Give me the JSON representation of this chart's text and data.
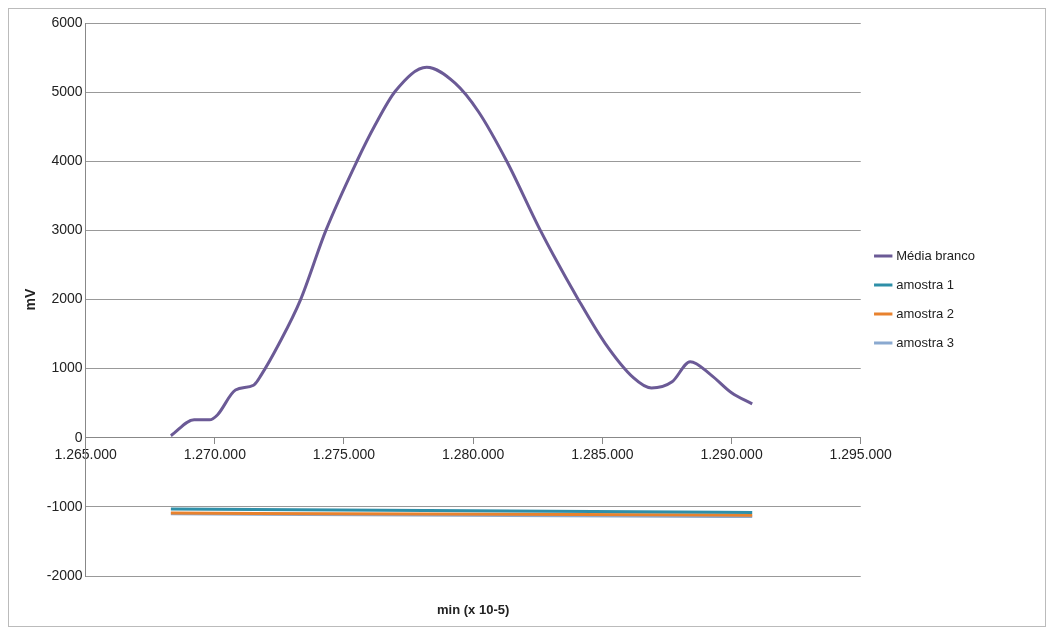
{
  "chart_data": {
    "type": "line",
    "xlabel": "min (x 10-5)",
    "ylabel": "mV",
    "xlim": [
      1265000,
      1295000
    ],
    "xticks": [
      {
        "value": 1265000,
        "label": "1.265.000"
      },
      {
        "value": 1270000,
        "label": "1.270.000"
      },
      {
        "value": 1275000,
        "label": "1.275.000"
      },
      {
        "value": 1280000,
        "label": "1.280.000"
      },
      {
        "value": 1285000,
        "label": "1.285.000"
      },
      {
        "value": 1290000,
        "label": "1.290.000"
      },
      {
        "value": 1295000,
        "label": "1.295.000"
      }
    ],
    "ylim": [
      -2000,
      6000
    ],
    "yticks": [
      -2000,
      -1000,
      0,
      1000,
      2000,
      3000,
      4000,
      5000,
      6000
    ],
    "grid": "y",
    "legend": "right",
    "marker": "none",
    "line_style": "solid",
    "series": [
      {
        "name": "Média branco",
        "color": "#6b5a96",
        "x": [
          1268300,
          1269200,
          1269800,
          1270100,
          1270800,
          1271500,
          1271800,
          1272500,
          1273300,
          1274300,
          1275500,
          1276200,
          1277000,
          1278200,
          1279300,
          1280200,
          1281300,
          1282600,
          1284100,
          1285100,
          1286200,
          1286900,
          1287700,
          1288400,
          1289200,
          1290000,
          1290800
        ],
        "values": [
          30,
          260,
          260,
          330,
          690,
          760,
          910,
          1370,
          1980,
          3000,
          4000,
          4520,
          5020,
          5360,
          5130,
          4720,
          4000,
          3000,
          1980,
          1370,
          870,
          720,
          810,
          1100,
          910,
          650,
          490
        ]
      },
      {
        "name": "amostra 1",
        "color": "#2e8fa8",
        "x": [
          1268300,
          1290800
        ],
        "values": [
          -1030,
          -1080
        ]
      },
      {
        "name": "amostra 2",
        "color": "#e8822e",
        "x": [
          1268300,
          1290800
        ],
        "values": [
          -1090,
          -1120
        ]
      },
      {
        "name": "amostra 3",
        "color": "#8aa9d0",
        "x": [
          1268300,
          1290800
        ],
        "values": [
          -1100,
          -1140
        ]
      }
    ]
  }
}
